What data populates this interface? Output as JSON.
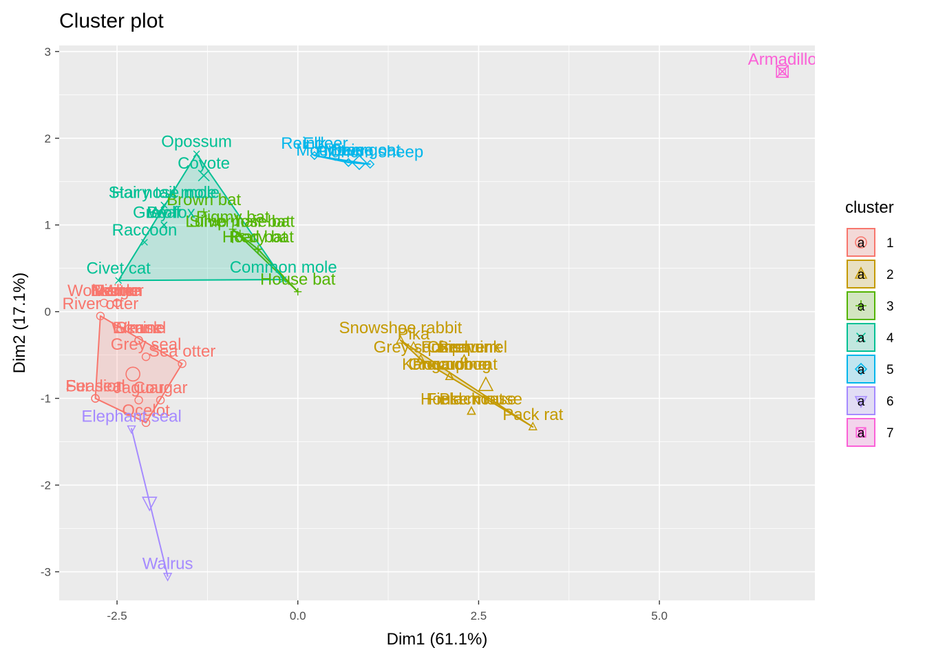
{
  "chart_data": {
    "type": "scatter",
    "title": "Cluster plot",
    "xlabel": "Dim1 (61.1%)",
    "ylabel": "Dim2 (17.1%)",
    "xlim": [
      -3.3,
      7.15
    ],
    "ylim": [
      -3.33,
      3.07
    ],
    "x_ticks": [
      -2.5,
      0.0,
      2.5,
      5.0
    ],
    "x_tick_labels": [
      "-2.5",
      "0.0",
      "2.5",
      "5.0"
    ],
    "y_ticks": [
      -3,
      -2,
      -1,
      0,
      1,
      2,
      3
    ],
    "y_tick_labels": [
      "-3",
      "-2",
      "-1",
      "0",
      "1",
      "2",
      "3"
    ],
    "grid": true,
    "legend": {
      "title": "cluster",
      "position": "right",
      "entries": [
        "1",
        "2",
        "3",
        "4",
        "5",
        "6",
        "7"
      ]
    },
    "series": [
      {
        "name": "1",
        "color": "#F8766D",
        "shape": "circle",
        "center": [
          -2.28,
          -0.72
        ],
        "hull": [
          [
            -2.73,
            -0.05
          ],
          [
            -1.6,
            -0.6
          ],
          [
            -2.1,
            -1.28
          ],
          [
            -2.8,
            -1.0
          ]
        ],
        "points": [
          {
            "label": "Wolverine",
            "x": -2.68,
            "y": 0.1
          },
          {
            "label": "Badger",
            "x": -2.5,
            "y": 0.1
          },
          {
            "label": "Marten",
            "x": -2.5,
            "y": 0.1
          },
          {
            "label": "Fisher",
            "x": -2.5,
            "y": 0.1
          },
          {
            "label": "Mink",
            "x": -2.5,
            "y": 0.1
          },
          {
            "label": "River otter",
            "x": -2.73,
            "y": -0.05
          },
          {
            "label": "Weasel",
            "x": -2.2,
            "y": -0.33
          },
          {
            "label": "Ermine",
            "x": -2.2,
            "y": -0.33
          },
          {
            "label": "Skunk",
            "x": -2.2,
            "y": -0.33
          },
          {
            "label": "Grey seal",
            "x": -2.1,
            "y": -0.52
          },
          {
            "label": "Sea otter",
            "x": -1.6,
            "y": -0.6
          },
          {
            "label": "Fur seal",
            "x": -2.8,
            "y": -1.0
          },
          {
            "label": "Sea lion",
            "x": -2.8,
            "y": -1.0
          },
          {
            "label": "Jaguar",
            "x": -2.2,
            "y": -1.02
          },
          {
            "label": "Cougar",
            "x": -1.9,
            "y": -1.02
          },
          {
            "label": "Ocelot",
            "x": -2.1,
            "y": -1.28
          }
        ]
      },
      {
        "name": "2",
        "color": "#C49A00",
        "shape": "triangle",
        "center": [
          2.6,
          -0.85
        ],
        "hull": [
          [
            1.42,
            -0.33
          ],
          [
            3.25,
            -1.33
          ],
          [
            1.7,
            -0.55
          ]
        ],
        "points": [
          {
            "label": "Snowshoe rabbit",
            "x": 1.42,
            "y": -0.33
          },
          {
            "label": "Pika",
            "x": 1.6,
            "y": -0.4
          },
          {
            "label": "Grey squirrel",
            "x": 1.7,
            "y": -0.55
          },
          {
            "label": "Chipmunk",
            "x": 2.3,
            "y": -0.55
          },
          {
            "label": "Beaver",
            "x": 2.3,
            "y": -0.55
          },
          {
            "label": "Fox squirrel",
            "x": 2.3,
            "y": -0.55
          },
          {
            "label": "Porcupine",
            "x": 2.1,
            "y": -0.75
          },
          {
            "label": "Kangaroo rat",
            "x": 2.1,
            "y": -0.75
          },
          {
            "label": "Groundhog",
            "x": 2.1,
            "y": -0.75
          },
          {
            "label": "Field mouse",
            "x": 2.4,
            "y": -1.15
          },
          {
            "label": "Black rat",
            "x": 2.4,
            "y": -1.15
          },
          {
            "label": "House mouse",
            "x": 2.4,
            "y": -1.15
          },
          {
            "label": "Pack rat",
            "x": 3.25,
            "y": -1.33
          }
        ]
      },
      {
        "name": "3",
        "color": "#53B400",
        "shape": "plus",
        "center": [
          -0.9,
          0.87
        ],
        "hull": [
          [
            -0.9,
            0.95
          ],
          [
            0.0,
            0.23
          ],
          [
            -0.55,
            0.72
          ]
        ],
        "points": [
          {
            "label": "Brown bat",
            "x": -1.3,
            "y": 1.15
          },
          {
            "label": "Pigmy bat",
            "x": -0.9,
            "y": 0.95
          },
          {
            "label": "Silver hair bat",
            "x": -0.8,
            "y": 0.9
          },
          {
            "label": "Lump nose bat",
            "x": -0.8,
            "y": 0.9
          },
          {
            "label": "Hoary bat",
            "x": -0.55,
            "y": 0.72
          },
          {
            "label": "Red bat",
            "x": -0.55,
            "y": 0.72
          },
          {
            "label": "House bat",
            "x": 0.0,
            "y": 0.23
          }
        ]
      },
      {
        "name": "4",
        "color": "#00C094",
        "shape": "cross",
        "center": [
          -1.3,
          1.57
        ],
        "hull": [
          [
            -2.48,
            0.36
          ],
          [
            -1.4,
            1.82
          ],
          [
            -0.2,
            0.37
          ]
        ],
        "points": [
          {
            "label": "Opossum",
            "x": -1.4,
            "y": 1.82
          },
          {
            "label": "Coyote",
            "x": -1.3,
            "y": 1.57
          },
          {
            "label": "Hairy tail mole",
            "x": -1.85,
            "y": 1.23
          },
          {
            "label": "Star nose mole",
            "x": -1.85,
            "y": 1.23
          },
          {
            "label": "Grey fox",
            "x": -1.85,
            "y": 1.0
          },
          {
            "label": "Bear",
            "x": -1.85,
            "y": 1.0
          },
          {
            "label": "Wolf",
            "x": -1.85,
            "y": 1.0
          },
          {
            "label": "Raccoon",
            "x": -2.12,
            "y": 0.8
          },
          {
            "label": "Civet cat",
            "x": -2.48,
            "y": 0.36
          },
          {
            "label": "Common mole",
            "x": -0.2,
            "y": 0.37
          }
        ]
      },
      {
        "name": "5",
        "color": "#00B6EB",
        "shape": "diamond",
        "center": [
          0.85,
          1.72
        ],
        "hull": [
          [
            0.23,
            1.8
          ],
          [
            1.0,
            1.7
          ],
          [
            0.7,
            1.72
          ]
        ],
        "points": [
          {
            "label": "Reindeer",
            "x": 0.23,
            "y": 1.8
          },
          {
            "label": "Elk",
            "x": 0.23,
            "y": 1.8
          },
          {
            "label": "Moose",
            "x": 0.7,
            "y": 1.72
          },
          {
            "label": "Deer",
            "x": 0.7,
            "y": 1.72
          },
          {
            "label": "Mountain goat",
            "x": 0.7,
            "y": 1.72
          },
          {
            "label": "Bighorn sheep",
            "x": 1.0,
            "y": 1.7
          }
        ]
      },
      {
        "name": "6",
        "color": "#A58AFF",
        "shape": "triangle-down",
        "center": [
          -2.05,
          -2.2
        ],
        "hull": [
          [
            -2.3,
            -1.35
          ],
          [
            -1.8,
            -3.05
          ]
        ],
        "points": [
          {
            "label": "Elephant seal",
            "x": -2.3,
            "y": -1.35
          },
          {
            "label": "Walrus",
            "x": -1.8,
            "y": -3.05
          }
        ]
      },
      {
        "name": "7",
        "color": "#FB61D7",
        "shape": "square-cross",
        "center": [
          6.7,
          2.77
        ],
        "hull": [],
        "points": [
          {
            "label": "Armadillo",
            "x": 6.7,
            "y": 2.77
          }
        ]
      }
    ]
  }
}
